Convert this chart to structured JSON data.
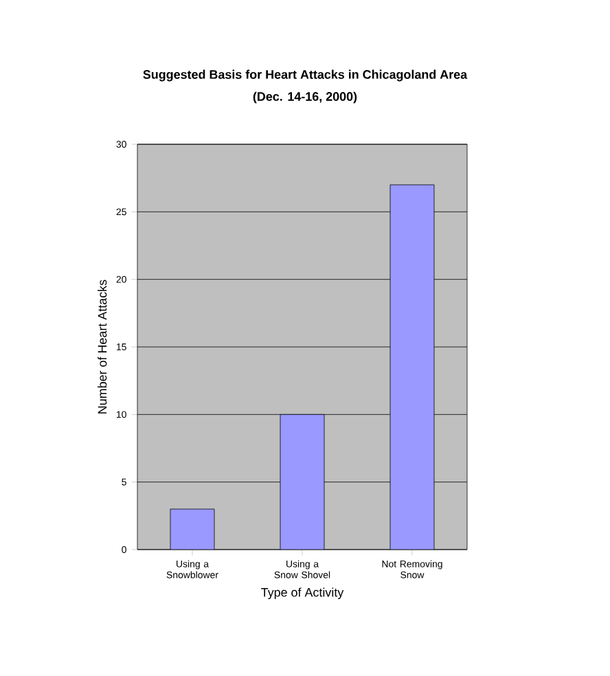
{
  "chart_data": {
    "type": "bar",
    "title": "Suggested Basis for Heart Attacks in Chicagoland Area",
    "subtitle": "(Dec. 14-16, 2000)",
    "xlabel": "Type of Activity",
    "ylabel": "Number of Heart Attacks",
    "categories": [
      "Using a Snowblower",
      "Using a Snow Shovel",
      "Not Removing Snow"
    ],
    "values": [
      3,
      10,
      27
    ],
    "color": "#9999ff",
    "ylim": [
      0,
      30
    ],
    "yticks": [
      0,
      5,
      10,
      15,
      20,
      25,
      30
    ],
    "grid": "y"
  }
}
